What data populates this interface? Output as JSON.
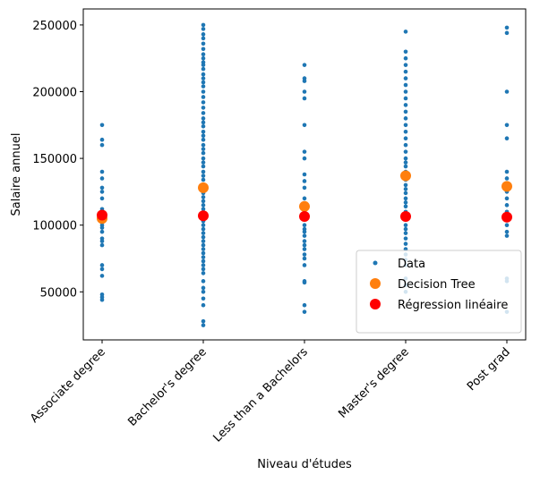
{
  "chart_data": {
    "type": "scatter",
    "xlabel": "Niveau d'études",
    "ylabel": "Salaire annuel",
    "categories": [
      "Associate degree",
      "Bachelor's degree",
      "Less than a Bachelors",
      "Master's degree",
      "Post grad"
    ],
    "ylim": [
      14000,
      262000
    ],
    "yticks": [
      50000,
      100000,
      150000,
      200000,
      250000
    ],
    "grid": false,
    "legend_position": "lower right",
    "series": [
      {
        "name": "Data",
        "marker": "dot",
        "color": "#1f77b4",
        "points": [
          {
            "category": 0,
            "values": [
              175000,
              164000,
              160000,
              140000,
              135000,
              128000,
              125000,
              120000,
              112000,
              108000,
              104000,
              100000,
              98000,
              95000,
              90000,
              88000,
              85000,
              70000,
              67000,
              62000,
              48000,
              46000,
              44000
            ]
          },
          {
            "category": 1,
            "values": [
              250000,
              247000,
              243000,
              240000,
              236000,
              232000,
              228000,
              225000,
              222000,
              220000,
              217000,
              213000,
              210000,
              207000,
              204000,
              200000,
              196000,
              192000,
              188000,
              184000,
              180000,
              177000,
              174000,
              170000,
              167000,
              164000,
              160000,
              157000,
              154000,
              150000,
              147000,
              144000,
              140000,
              137000,
              134000,
              130000,
              127000,
              124000,
              121000,
              118000,
              115000,
              112000,
              109000,
              106000,
              103000,
              100000,
              97000,
              94000,
              91000,
              88000,
              85000,
              82000,
              79000,
              76000,
              73000,
              70000,
              67000,
              64000,
              58000,
              53000,
              50000,
              45000,
              40000,
              28000,
              25000
            ]
          },
          {
            "category": 2,
            "values": [
              220000,
              210000,
              208000,
              200000,
              195000,
              175000,
              155000,
              150000,
              138000,
              133000,
              128000,
              120000,
              115000,
              112000,
              108000,
              105000,
              100000,
              97000,
              95000,
              92000,
              88000,
              85000,
              82000,
              78000,
              75000,
              70000,
              58000,
              57000,
              40000,
              35000
            ]
          },
          {
            "category": 3,
            "values": [
              245000,
              230000,
              225000,
              220000,
              215000,
              210000,
              205000,
              200000,
              195000,
              190000,
              185000,
              180000,
              175000,
              170000,
              165000,
              160000,
              155000,
              150000,
              147000,
              144000,
              140000,
              137000,
              134000,
              130000,
              127000,
              124000,
              120000,
              117000,
              114000,
              110000,
              107000,
              104000,
              100000,
              97000,
              94000,
              90000,
              86000,
              82000,
              78000,
              74000,
              70000,
              60000,
              55000,
              50000
            ]
          },
          {
            "category": 4,
            "values": [
              248000,
              244000,
              200000,
              175000,
              165000,
              140000,
              135000,
              130000,
              125000,
              120000,
              115000,
              110000,
              105000,
              100000,
              95000,
              92000,
              60000,
              58000,
              35000
            ]
          }
        ]
      },
      {
        "name": "Decision Tree",
        "marker": "large-dot",
        "color": "#ff7f0e",
        "values": [
          105000,
          128000,
          114000,
          137000,
          129000
        ]
      },
      {
        "name": "Régression linéaire",
        "marker": "large-dot",
        "color": "#ff0000",
        "values": [
          107500,
          107000,
          106500,
          106500,
          106000
        ]
      }
    ]
  }
}
